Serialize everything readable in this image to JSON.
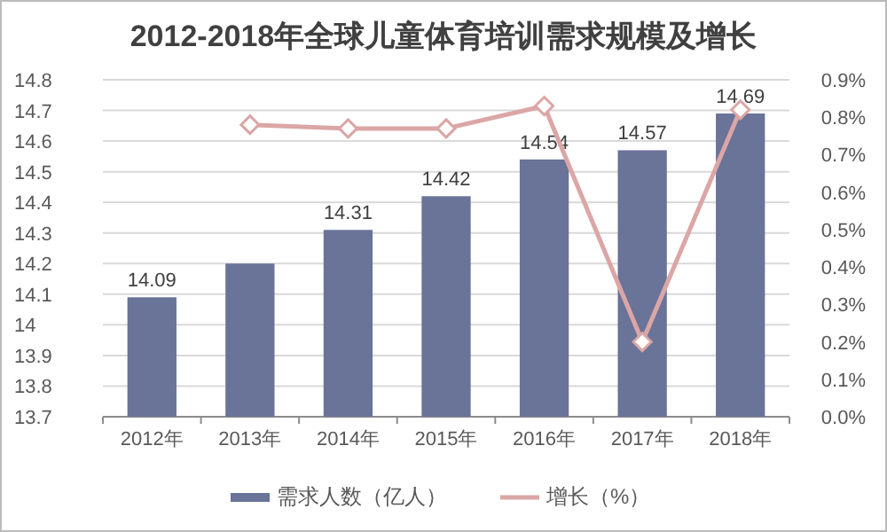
{
  "chart_data": {
    "type": "bar",
    "title": "2012-2018年全球儿童体育培训需求规模及增长",
    "categories": [
      "2012年",
      "2013年",
      "2014年",
      "2015年",
      "2016年",
      "2017年",
      "2018年"
    ],
    "series": [
      {
        "name": "需求人数（亿人）",
        "color": "#6a7398",
        "values": [
          14.09,
          14.2,
          14.31,
          14.42,
          14.54,
          14.57,
          14.69
        ],
        "value_labels": [
          "14.09",
          null,
          "14.31",
          "14.42",
          "14.54",
          "14.57",
          "14.69"
        ]
      },
      {
        "name": "增长（%）",
        "type": "line",
        "axis": "y2",
        "color": "#dba6a6",
        "marker": "diamond",
        "values": [
          null,
          0.78,
          0.77,
          0.77,
          0.83,
          0.2,
          0.82
        ]
      }
    ],
    "ylim": [
      13.7,
      14.8
    ],
    "yticks": [
      13.7,
      13.8,
      13.9,
      14,
      14.1,
      14.2,
      14.3,
      14.4,
      14.5,
      14.6,
      14.7,
      14.8
    ],
    "y2lim": [
      0,
      0.9
    ],
    "y2ticks": [
      {
        "value": 0,
        "label": "0.0%"
      },
      {
        "value": 0.1,
        "label": "0.1%"
      },
      {
        "value": 0.2,
        "label": "0.2%"
      },
      {
        "value": 0.3,
        "label": "0.3%"
      },
      {
        "value": 0.4,
        "label": "0.4%"
      },
      {
        "value": 0.5,
        "label": "0.5%"
      },
      {
        "value": 0.6,
        "label": "0.6%"
      },
      {
        "value": 0.7,
        "label": "0.7%"
      },
      {
        "value": 0.8,
        "label": "0.8%"
      },
      {
        "value": 0.9,
        "label": "0.9%"
      }
    ],
    "grid": "y",
    "legend": "bottom"
  }
}
